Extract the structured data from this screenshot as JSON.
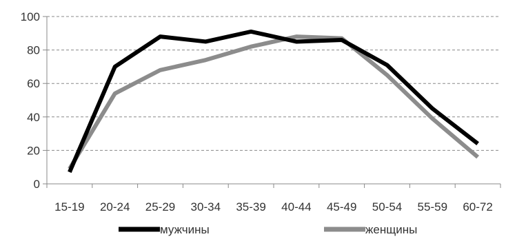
{
  "chart_data": {
    "type": "line",
    "categories": [
      "15-19",
      "20-24",
      "25-29",
      "30-34",
      "35-39",
      "40-44",
      "45-49",
      "50-54",
      "55-59",
      "60-72"
    ],
    "ylim": [
      0,
      100
    ],
    "yticks": [
      0,
      20,
      40,
      60,
      80,
      100
    ],
    "grid": "horizontal dashed",
    "legend_position": "bottom",
    "series": [
      {
        "name": "мужчины",
        "color": "#000000",
        "values": [
          7,
          70,
          88,
          85,
          91,
          85,
          86,
          71,
          45,
          24
        ]
      },
      {
        "name": "женщины",
        "color": "#8c8c8c",
        "values": [
          9,
          54,
          68,
          74,
          82,
          88,
          87,
          65,
          39,
          16
        ]
      }
    ]
  }
}
